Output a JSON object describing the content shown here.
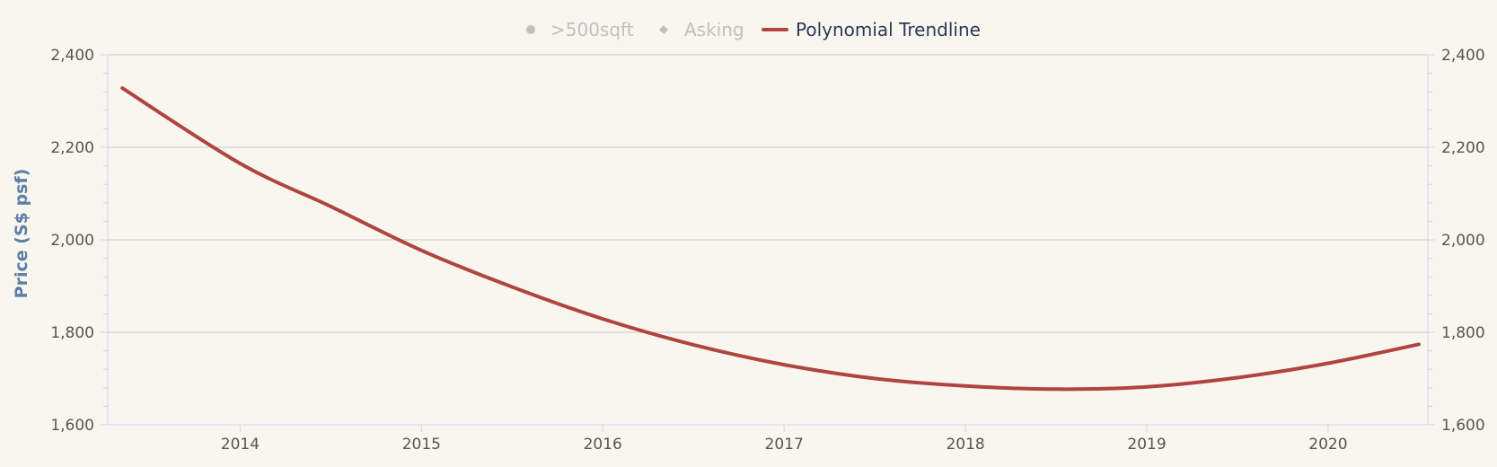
{
  "colors": {
    "background": "#f9f6f0",
    "grid": "#c8c8c8",
    "axis": "#ccd6eb",
    "tick_label": "#555555",
    "axis_title": "#5b7fa6",
    "trend": "#b04540",
    "legend_inactive": "#c0c0c0",
    "legend_active": "#2b3a55"
  },
  "legend": {
    "items": [
      {
        "label": ">500sqft",
        "symbol": "circle",
        "active": false
      },
      {
        "label": "Asking",
        "symbol": "diamond",
        "active": false
      },
      {
        "label": "Polynomial Trendline",
        "symbol": "line",
        "active": true
      }
    ]
  },
  "chart_data": {
    "type": "line",
    "title": "",
    "xlabel": "",
    "ylabel": "Price (S$ psf)",
    "xlim": [
      2013.27,
      2020.55
    ],
    "ylim": [
      1600,
      2400
    ],
    "x_ticks": [
      2014,
      2015,
      2016,
      2017,
      2018,
      2019,
      2020
    ],
    "x_tick_labels": [
      "2014",
      "2015",
      "2016",
      "2017",
      "2018",
      "2019",
      "2020"
    ],
    "y_ticks": [
      1600,
      1800,
      2000,
      2200,
      2400
    ],
    "y_tick_labels": [
      "1,600",
      "1,800",
      "2,000",
      "2,200",
      "2,400"
    ],
    "y_tick_labels_right": [
      "1,600",
      "1,800",
      "2,000",
      "2,200",
      "2,400"
    ],
    "grid": true,
    "legend_position": "top-center",
    "series": [
      {
        "name": "Polynomial Trendline",
        "x": [
          2013.35,
          2014.0,
          2014.5,
          2015.0,
          2015.5,
          2016.0,
          2016.5,
          2017.0,
          2017.5,
          2018.0,
          2018.5,
          2019.0,
          2019.5,
          2020.0,
          2020.5
        ],
        "y": [
          2328,
          2165,
          2072,
          1977,
          1898,
          1829,
          1773,
          1730,
          1700,
          1684,
          1677,
          1682,
          1702,
          1733,
          1774
        ]
      }
    ]
  }
}
